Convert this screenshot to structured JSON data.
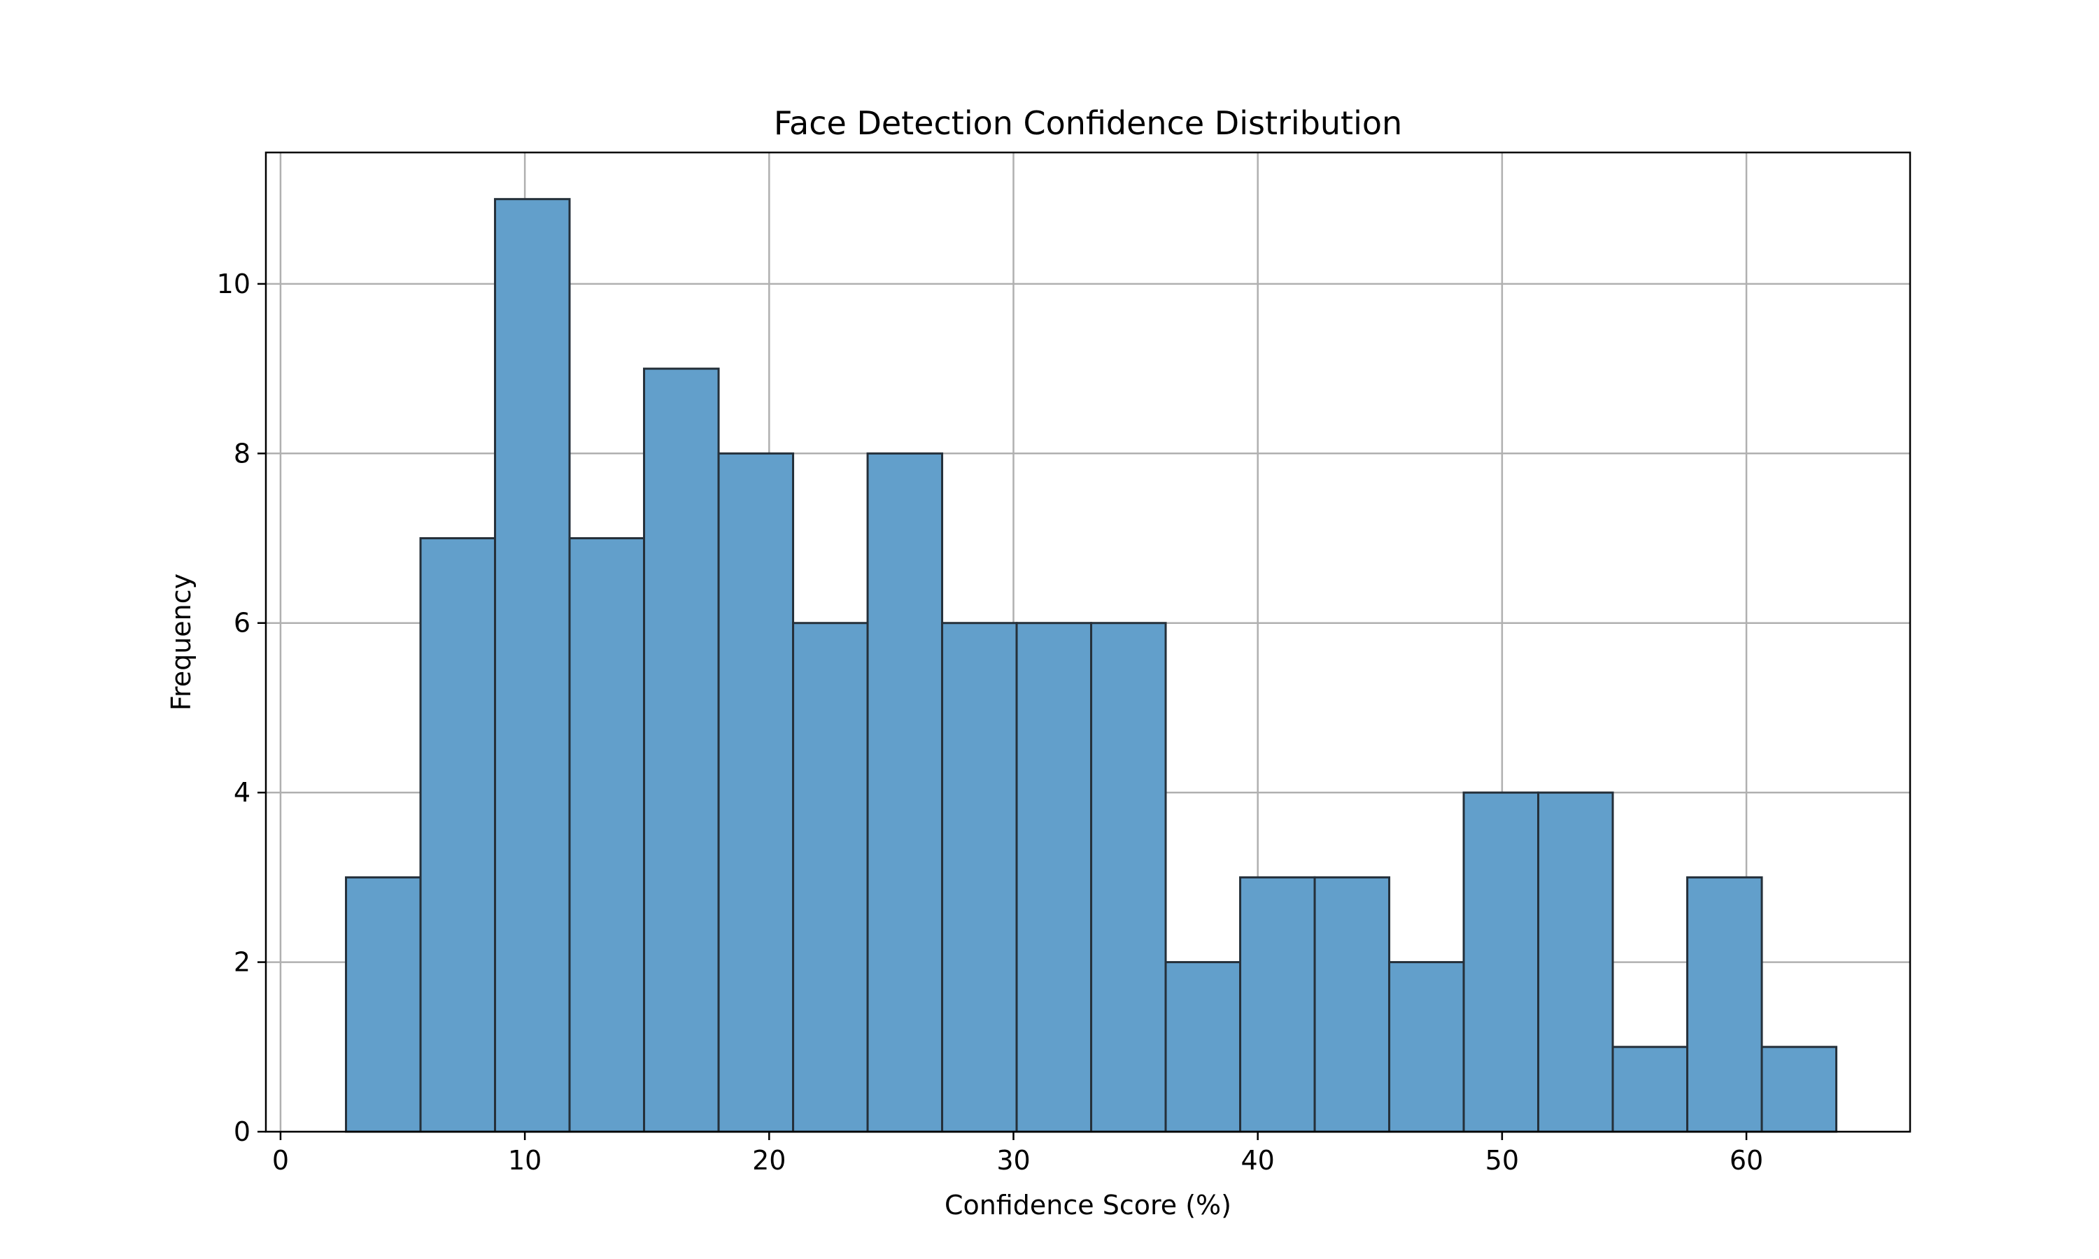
{
  "chart_data": {
    "type": "bar",
    "title": "Face Detection Confidence Distribution",
    "xlabel": "Confidence Score (%)",
    "ylabel": "Frequency",
    "xlim": [
      -0.6,
      66.7
    ],
    "ylim": [
      0,
      11.55
    ],
    "xticks": [
      0,
      10,
      20,
      30,
      40,
      50,
      60
    ],
    "yticks": [
      0,
      2,
      4,
      6,
      8,
      10
    ],
    "grid": true,
    "bins": [
      {
        "start": 2.68,
        "end": 5.73,
        "count": 3
      },
      {
        "start": 5.73,
        "end": 8.78,
        "count": 7
      },
      {
        "start": 8.78,
        "end": 11.83,
        "count": 11
      },
      {
        "start": 11.83,
        "end": 14.88,
        "count": 7
      },
      {
        "start": 14.88,
        "end": 17.93,
        "count": 9
      },
      {
        "start": 17.93,
        "end": 20.98,
        "count": 8
      },
      {
        "start": 20.98,
        "end": 24.03,
        "count": 6
      },
      {
        "start": 24.03,
        "end": 27.08,
        "count": 8
      },
      {
        "start": 27.08,
        "end": 30.13,
        "count": 6
      },
      {
        "start": 30.13,
        "end": 33.18,
        "count": 6
      },
      {
        "start": 33.18,
        "end": 36.23,
        "count": 6
      },
      {
        "start": 36.23,
        "end": 39.28,
        "count": 2
      },
      {
        "start": 39.28,
        "end": 42.33,
        "count": 3
      },
      {
        "start": 42.33,
        "end": 45.38,
        "count": 3
      },
      {
        "start": 45.38,
        "end": 48.43,
        "count": 2
      },
      {
        "start": 48.43,
        "end": 51.48,
        "count": 4
      },
      {
        "start": 51.48,
        "end": 54.53,
        "count": 4
      },
      {
        "start": 54.53,
        "end": 57.58,
        "count": 1
      },
      {
        "start": 57.58,
        "end": 60.63,
        "count": 3
      },
      {
        "start": 60.63,
        "end": 63.68,
        "count": 1
      }
    ],
    "colors": {
      "bar_fill": "#629fcb",
      "bar_edge": "#25303a",
      "grid": "#b0b0b0",
      "axes": "#000000"
    }
  }
}
